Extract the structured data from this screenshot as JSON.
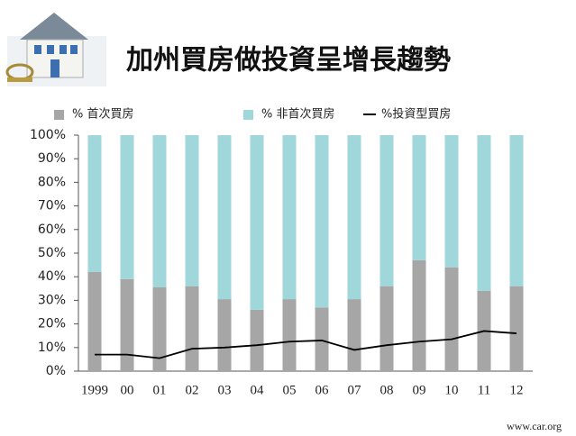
{
  "chart_data": {
    "type": "bar",
    "stacked": true,
    "title": "加州買房做投資呈增長趨勢",
    "source": "www.car.org",
    "categories": [
      "1999",
      "00",
      "01",
      "02",
      "03",
      "04",
      "05",
      "06",
      "07",
      "08",
      "09",
      "10",
      "11",
      "12"
    ],
    "series": [
      {
        "name": "%  首次買房",
        "type": "bar",
        "color": "#a6a6a6",
        "values": [
          42,
          39,
          35.5,
          36,
          30.5,
          26,
          30.5,
          27,
          30.5,
          36,
          47,
          44,
          34,
          36
        ]
      },
      {
        "name": "%  非首次買房",
        "type": "bar",
        "color": "#9fd7db",
        "values": [
          58,
          61,
          64.5,
          64,
          69.5,
          74,
          69.5,
          73,
          69.5,
          64,
          53,
          56,
          66,
          64
        ]
      },
      {
        "name": "%投資型買房",
        "type": "line",
        "color": "#000000",
        "values": [
          7,
          7,
          5.5,
          9.5,
          10,
          11,
          12.5,
          13,
          9,
          11,
          12.5,
          13.5,
          17,
          16
        ]
      }
    ],
    "ylim": [
      0,
      100
    ],
    "yticks": [
      {
        "value": 0,
        "label": "0%"
      },
      {
        "value": 10,
        "label": "10%"
      },
      {
        "value": 20,
        "label": "20%"
      },
      {
        "value": 30,
        "label": "30%"
      },
      {
        "value": 40,
        "label": "40%"
      },
      {
        "value": 50,
        "label": "50%"
      },
      {
        "value": 60,
        "label": "60%"
      },
      {
        "value": 70,
        "label": "70%"
      },
      {
        "value": 80,
        "label": "80%"
      },
      {
        "value": 90,
        "label": "90%"
      },
      {
        "value": 100,
        "label": "100%"
      }
    ],
    "grid": false,
    "legend": "top"
  }
}
